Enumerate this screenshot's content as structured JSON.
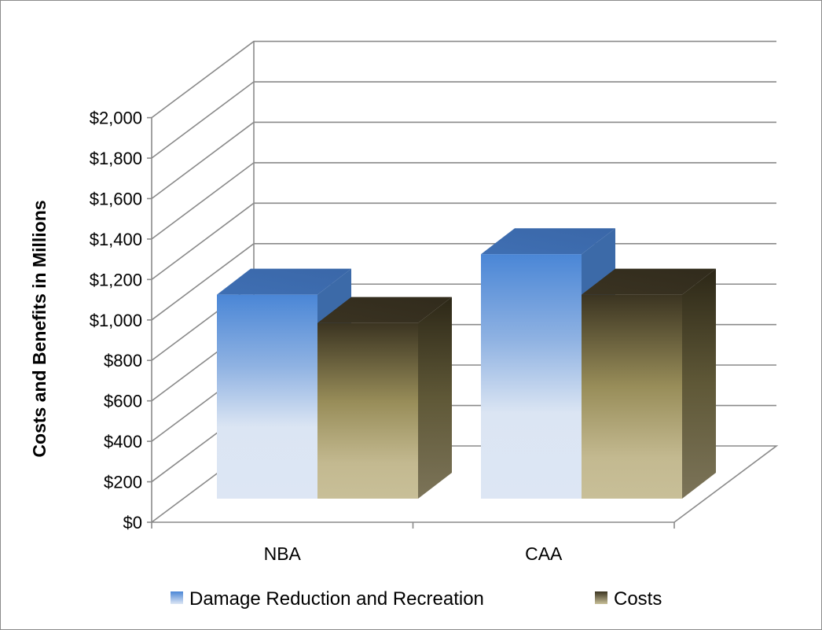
{
  "chart_data": {
    "type": "bar",
    "style": "3d-clustered-column",
    "categories": [
      "NBA",
      "CAA"
    ],
    "series": [
      {
        "name": "Damage Reduction and Recreation",
        "values": [
          1125,
          1325
        ],
        "color": "#4a86d6"
      },
      {
        "name": "Costs",
        "values": [
          985,
          1125
        ],
        "color": "#8c8049"
      }
    ],
    "ylabel": "Costs and Benefits in Millions",
    "xlabel": "",
    "ylim": [
      0,
      2000
    ],
    "yticks": [
      0,
      200,
      400,
      600,
      800,
      1000,
      1200,
      1400,
      1600,
      1800,
      2000
    ],
    "ytick_labels": [
      "$0",
      "$200",
      "$400",
      "$600",
      "$800",
      "$1,000",
      "$1,200",
      "$1,400",
      "$1,600",
      "$1,800",
      "$2,000"
    ],
    "grid": true,
    "legend_position": "bottom"
  }
}
